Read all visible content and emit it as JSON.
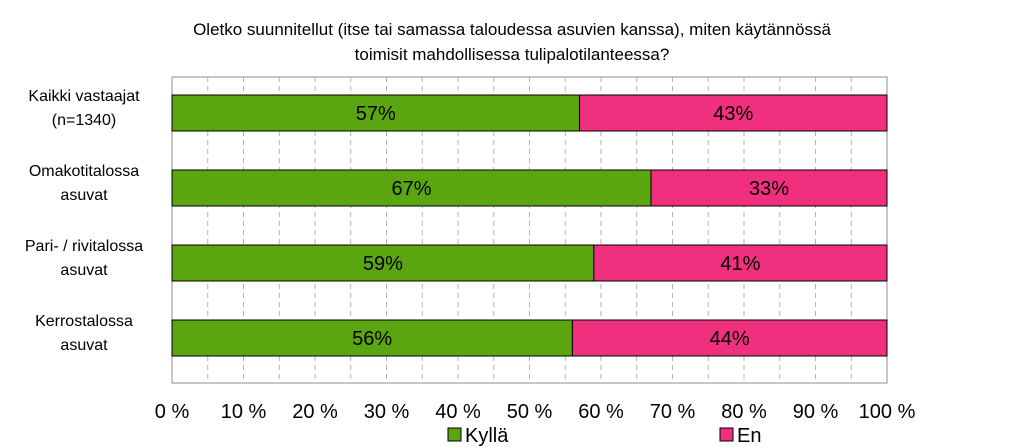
{
  "chart_data": {
    "type": "bar",
    "stacked": true,
    "orientation": "horizontal",
    "title_lines": [
      "Oletko suunnitellut (itse tai samassa taloudessa asuvien kanssa), miten käytännössä",
      "toimisit mahdollisessa tulipalotilanteessa?"
    ],
    "categories": [
      [
        "Kaikki vastaajat",
        "(n=1340)"
      ],
      [
        "Omakotitalossa",
        "asuvat"
      ],
      [
        "Pari- / rivitalossa",
        "asuvat"
      ],
      [
        "Kerrostalossa",
        "asuvat"
      ]
    ],
    "series": [
      {
        "name": "Kyllä",
        "color": "#5aa510",
        "values": [
          57,
          67,
          59,
          56
        ],
        "labels": [
          "57%",
          "67%",
          "59%",
          "56%"
        ]
      },
      {
        "name": "En",
        "color": "#f0307e",
        "values": [
          43,
          33,
          41,
          44
        ],
        "labels": [
          "43%",
          "33%",
          "41%",
          "44%"
        ]
      }
    ],
    "xlim": [
      0,
      100
    ],
    "xticks": [
      "0 %",
      "10 %",
      "20 %",
      "30 %",
      "40 %",
      "50 %",
      "60 %",
      "70 %",
      "80 %",
      "90 %",
      "100 %"
    ],
    "grid": "vertical dashed",
    "legend_position": "bottom"
  }
}
